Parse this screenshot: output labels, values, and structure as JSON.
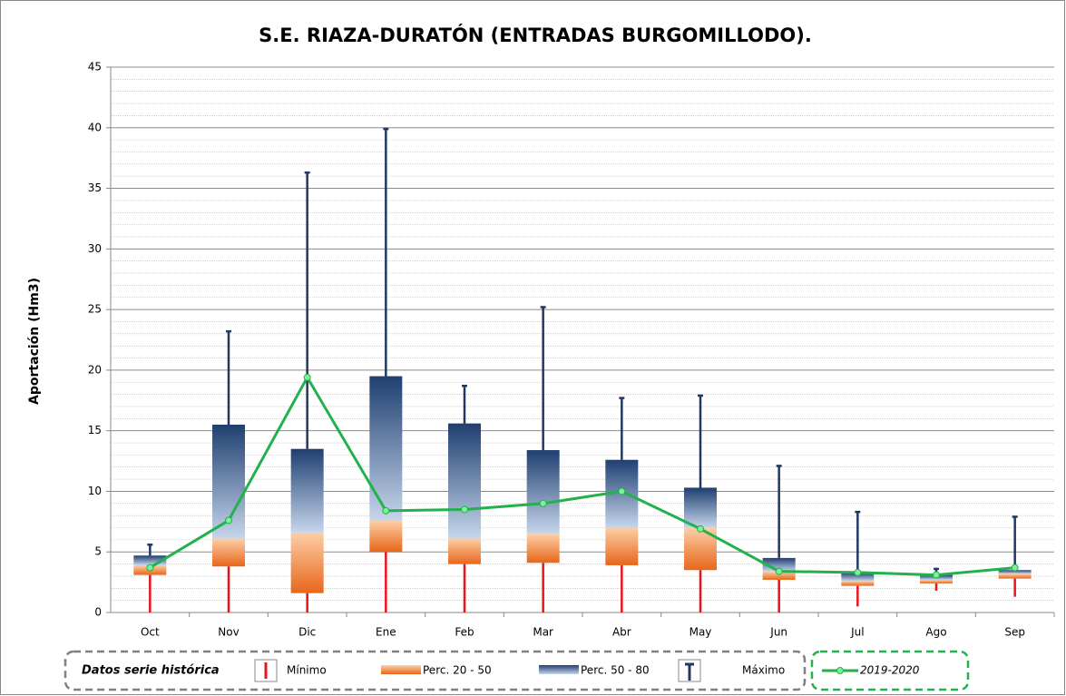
{
  "chart_data": {
    "type": "box",
    "title": "S.E. RIAZA-DURATÓN (ENTRADAS BURGOMILLODO).",
    "y_label": "Aportación (Hm3)",
    "categories": [
      "Oct",
      "Nov",
      "Dic",
      "Ene",
      "Feb",
      "Mar",
      "Abr",
      "May",
      "Jun",
      "Jul",
      "Ago",
      "Sep"
    ],
    "min": [
      0,
      0,
      0,
      0,
      0,
      0,
      0,
      0,
      0,
      0.5,
      1.8,
      1.3
    ],
    "p20": [
      3.1,
      3.8,
      1.6,
      5.0,
      4.0,
      4.1,
      3.9,
      3.5,
      2.7,
      2.2,
      2.4,
      2.8
    ],
    "p50": [
      3.9,
      6.1,
      6.6,
      7.6,
      6.1,
      6.5,
      7.0,
      7.0,
      3.4,
      2.6,
      2.7,
      3.2
    ],
    "p80": [
      4.7,
      15.5,
      13.5,
      19.5,
      15.6,
      13.4,
      12.6,
      10.3,
      4.5,
      3.3,
      3.1,
      3.5
    ],
    "max": [
      5.6,
      23.2,
      36.3,
      39.9,
      18.7,
      25.2,
      17.7,
      17.9,
      12.1,
      8.3,
      3.6,
      7.9
    ],
    "series": [
      {
        "name": "2019-2020",
        "color": "#22b14c",
        "values": [
          3.7,
          7.6,
          19.4,
          8.4,
          8.5,
          9.0,
          10.0,
          6.9,
          3.4,
          3.3,
          3.1,
          3.7
        ]
      }
    ],
    "legend_labels": {
      "title": "Datos serie histórica",
      "min": "Mínimo",
      "p20_50": "Perc. 20 - 50",
      "p50_80": "Perc. 50 - 80",
      "max": "Máximo"
    },
    "colors": {
      "min": "#e8151b",
      "max": "#1f3864"
    },
    "ylim": [
      0,
      45
    ],
    "yticks": [
      0,
      5,
      10,
      15,
      20,
      25,
      30,
      35,
      40,
      45
    ],
    "grid": true
  }
}
